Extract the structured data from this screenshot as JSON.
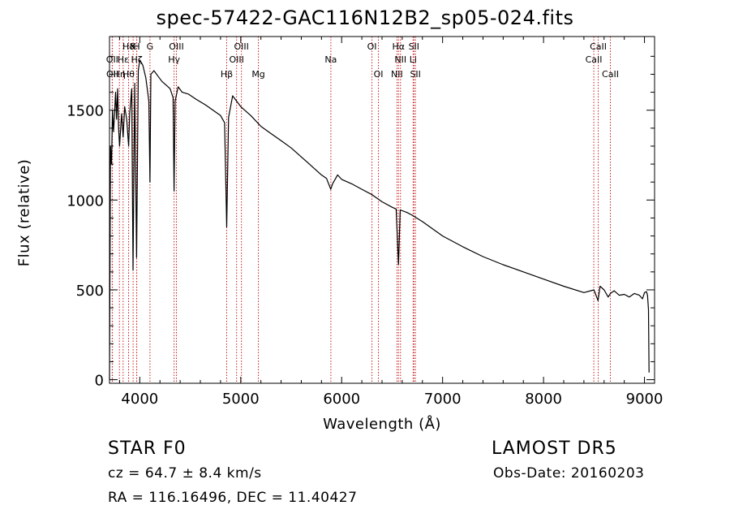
{
  "title": "spec-57422-GAC116N12B2_sp05-024.fits",
  "info": {
    "object_class": "STAR    F0",
    "survey": "LAMOST  DR5",
    "cz": "cz = 64.7 ± 8.4 km/s",
    "obs_date": "Obs-Date: 20160203",
    "coords": "RA = 116.16496, DEC =  11.40427"
  },
  "chart_data": {
    "type": "line",
    "title": "spec-57422-GAC116N12B2_sp05-024.fits",
    "xlabel": "Wavelength (Å)",
    "ylabel": "Flux (relative)",
    "xlim": [
      3700,
      9100
    ],
    "ylim": [
      -20,
      1910
    ],
    "xticks": [
      4000,
      5000,
      6000,
      7000,
      8000,
      9000
    ],
    "yticks": [
      0,
      500,
      1000,
      1500
    ],
    "series": [
      {
        "x": [
          3700,
          3710,
          3720,
          3730,
          3740,
          3750,
          3760,
          3770,
          3780,
          3790,
          3800,
          3820,
          3835,
          3850,
          3870,
          3890,
          3900,
          3920,
          3933,
          3950,
          3968,
          3985,
          4000,
          4030,
          4060,
          4090,
          4101,
          4110,
          4140,
          4180,
          4220,
          4260,
          4300,
          4330,
          4340,
          4350,
          4380,
          4420,
          4480,
          4560,
          4650,
          4750,
          4800,
          4840,
          4861,
          4880,
          4920,
          5000,
          5100,
          5200,
          5300,
          5400,
          5500,
          5600,
          5700,
          5800,
          5850,
          5892,
          5910,
          5960,
          6000,
          6100,
          6200,
          6300,
          6400,
          6500,
          6540,
          6563,
          6580,
          6650,
          6700,
          6800,
          6900,
          7000,
          7200,
          7400,
          7600,
          7800,
          8000,
          8200,
          8400,
          8500,
          8540,
          8560,
          8600,
          8640,
          8662,
          8700,
          8750,
          8800,
          8850,
          8900,
          8950,
          8980,
          9000,
          9020,
          9030,
          9040,
          9045
        ],
        "y": [
          0,
          1300,
          1200,
          1500,
          1380,
          1480,
          1600,
          1450,
          1620,
          1400,
          1300,
          1480,
          1350,
          1520,
          1450,
          1300,
          1480,
          1620,
          610,
          1650,
          680,
          1720,
          1780,
          1750,
          1680,
          1550,
          1100,
          1700,
          1720,
          1690,
          1660,
          1640,
          1620,
          1570,
          1050,
          1550,
          1630,
          1600,
          1590,
          1560,
          1530,
          1490,
          1470,
          1430,
          850,
          1460,
          1580,
          1520,
          1470,
          1410,
          1370,
          1330,
          1290,
          1240,
          1190,
          1140,
          1120,
          1060,
          1090,
          1140,
          1115,
          1090,
          1060,
          1030,
          990,
          960,
          950,
          640,
          945,
          930,
          915,
          880,
          840,
          800,
          740,
          685,
          640,
          600,
          560,
          520,
          485,
          500,
          440,
          520,
          500,
          460,
          480,
          495,
          470,
          475,
          460,
          480,
          470,
          450,
          485,
          490,
          470,
          390,
          40
        ]
      }
    ],
    "line_markers": [
      {
        "name": "Hδ",
        "x": 3889,
        "row": 1
      },
      {
        "name": "K",
        "x": 3934,
        "row": 1
      },
      {
        "name": "H",
        "x": 3969,
        "row": 1
      },
      {
        "name": "G",
        "x": 4101,
        "row": 1
      },
      {
        "name": "OIII",
        "x": 4363,
        "row": 1
      },
      {
        "name": "OIII",
        "x": 5007,
        "row": 1
      },
      {
        "name": "OI",
        "x": 6300,
        "row": 1
      },
      {
        "name": "Hα",
        "x": 6563,
        "row": 1
      },
      {
        "name": "SII",
        "x": 6716,
        "row": 1
      },
      {
        "name": "CaII",
        "x": 8542,
        "row": 1
      },
      {
        "name": "OII",
        "x": 3727,
        "row": 2
      },
      {
        "name": "Hε",
        "x": 3835,
        "row": 2
      },
      {
        "name": "Hζ",
        "x": 3970,
        "row": 2
      },
      {
        "name": "Hγ",
        "x": 4340,
        "row": 2
      },
      {
        "name": "OIII",
        "x": 4959,
        "row": 2
      },
      {
        "name": "Na",
        "x": 5893,
        "row": 2
      },
      {
        "name": "NII",
        "x": 6583,
        "row": 2
      },
      {
        "name": "Li",
        "x": 6708,
        "row": 2
      },
      {
        "name": "CaII",
        "x": 8498,
        "row": 2
      },
      {
        "name": "OII",
        "x": 3729,
        "row": 3
      },
      {
        "name": "Hη",
        "x": 3798,
        "row": 3
      },
      {
        "name": "Hθ",
        "x": 3889,
        "row": 3
      },
      {
        "name": "Hβ",
        "x": 4861,
        "row": 3
      },
      {
        "name": "Mg",
        "x": 5175,
        "row": 3
      },
      {
        "name": "OI",
        "x": 6364,
        "row": 3
      },
      {
        "name": "NII",
        "x": 6548,
        "row": 3
      },
      {
        "name": "SII",
        "x": 6731,
        "row": 3
      },
      {
        "name": "CaII",
        "x": 8662,
        "row": 3
      }
    ]
  }
}
